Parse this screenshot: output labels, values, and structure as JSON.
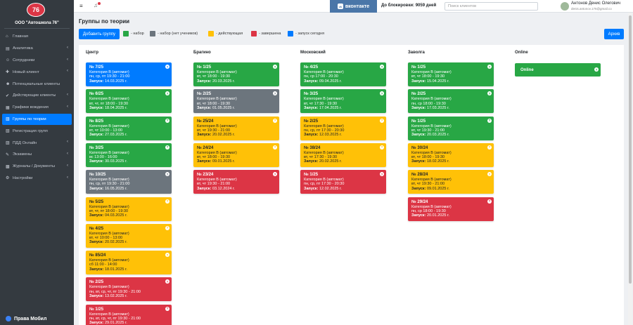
{
  "brand": {
    "logo": "76",
    "name": "ООО \"Автошкола 76\"",
    "bottom": "Права Мобил"
  },
  "colors": {
    "green": "#28a745",
    "gray": "#6c757d",
    "yellow": "#ffc107",
    "red": "#dc3545",
    "blue": "#007bff"
  },
  "nav": [
    {
      "label": "Главная",
      "icon": "home-icon",
      "glyph": "⌂",
      "chevron": false,
      "active": false
    },
    {
      "label": "Аналитика",
      "icon": "chart-icon",
      "glyph": "▤",
      "chevron": true,
      "active": false
    },
    {
      "label": "Сотрудники",
      "icon": "users-icon",
      "glyph": "☺",
      "chevron": true,
      "active": false
    },
    {
      "label": "Новый клиент",
      "icon": "user-plus-icon",
      "glyph": "✚",
      "chevron": true,
      "active": false
    },
    {
      "label": "Потенциальные клиенты",
      "icon": "user-icon",
      "glyph": "☻",
      "chevron": false,
      "active": false
    },
    {
      "label": "Действующие клиенты",
      "icon": "user-check-icon",
      "glyph": "✔",
      "chevron": true,
      "active": false
    },
    {
      "label": "Графики вождения",
      "icon": "calendar-icon",
      "glyph": "▦",
      "chevron": true,
      "active": false
    },
    {
      "label": "Группы по теории",
      "icon": "group-icon",
      "glyph": "▥",
      "chevron": false,
      "active": true
    },
    {
      "label": "Регистрация групп",
      "icon": "register-icon",
      "glyph": "▧",
      "chevron": false,
      "active": false
    },
    {
      "label": "ПДД Онлайн",
      "icon": "book-icon",
      "glyph": "▨",
      "chevron": true,
      "active": false
    },
    {
      "label": "Экзамены",
      "icon": "exam-icon",
      "glyph": "✎",
      "chevron": true,
      "active": false
    },
    {
      "label": "Журналы / Документы",
      "icon": "journal-icon",
      "glyph": "▩",
      "chevron": true,
      "active": false
    },
    {
      "label": "Настройки",
      "icon": "gear-icon",
      "glyph": "⚙",
      "chevron": true,
      "active": false
    }
  ],
  "topbar": {
    "vk_label": "вконтакте",
    "vk_badge": "vk",
    "block_label": "До блокировки: 9059 дней",
    "search_placeholder": "Поиск клиентов",
    "user_name": "Антонов Денис Олегович",
    "user_email": "denis.antonov.176@gmail.co"
  },
  "page": {
    "title": "Группы по теории",
    "add_button": "Добавить группу",
    "archive_button": "Архив"
  },
  "legend": [
    {
      "color": "#28a745",
      "label": "- набор"
    },
    {
      "color": "#6c757d",
      "label": "- набор (нет учеников)"
    },
    {
      "color": "#ffc107",
      "label": "- действующая"
    },
    {
      "color": "#dc3545",
      "label": "- завершена"
    },
    {
      "color": "#007bff",
      "label": "- запуск сегодня"
    }
  ],
  "launch_label": "Запуск:",
  "columns": [
    {
      "title": "Центр",
      "groups": [
        {
          "name": "№ 7/25",
          "category": "Категория В (автомат)",
          "schedule": "пн, ср, пт 19:30 - 21:00",
          "launch": "14.03.2025 г.",
          "color": "#007bff"
        },
        {
          "name": "№ 6/25",
          "category": "Категория В (автомат)",
          "schedule": "вт, чт, пт 18:00 - 19:30",
          "launch": "18.04.2025 г.",
          "color": "#28a745"
        },
        {
          "name": "№ 8/25",
          "category": "Категория В (автомат)",
          "schedule": "вт, чт 10:00 - 13:00",
          "launch": "27.03.2025 г.",
          "color": "#28a745"
        },
        {
          "name": "№ 3/25",
          "category": "Категория В (автомат)",
          "schedule": "вс 13:00 - 16:00",
          "launch": "30.03.2025 г.",
          "color": "#28a745"
        },
        {
          "name": "№ 10/25",
          "category": "Категория В (автомат)",
          "schedule": "пн, ср, пт 19:30 - 21:00",
          "launch": "16.05.2025 г.",
          "color": "#6c757d"
        },
        {
          "name": "№ 5/25",
          "category": "Категория В (автомат)",
          "schedule": "вт, чт, пт 18:00 - 19:30",
          "launch": "04.03.2025 г.",
          "color": "#ffc107"
        },
        {
          "name": "№ 4/25",
          "category": "Категория В (автомат)",
          "schedule": "вт, чт 10:00 - 13:00",
          "launch": "20.02.2025 г.",
          "color": "#ffc107"
        },
        {
          "name": "№ 85/24",
          "category": "Категория В (автомат)",
          "schedule": "сб 11:00 - 14:00",
          "launch": "18.01.2025 г.",
          "color": "#ffc107"
        },
        {
          "name": "№ 2/25",
          "category": "Категория В (автомат)",
          "schedule": "пн, вт, ср, чт, пт 19:30 - 21:00",
          "launch": "13.02.2025 г.",
          "color": "#dc3545"
        },
        {
          "name": "№ 1/25",
          "category": "Категория В (автомат)",
          "schedule": "пн, вт, ср, чт, пт 19:30 - 21:00",
          "launch": "29.01.2025 г.",
          "color": "#dc3545"
        }
      ]
    },
    {
      "title": "Брагино",
      "groups": [
        {
          "name": "№ 1/25",
          "category": "Категория В (автомат)",
          "schedule": "вт, чт 18:00 - 19:30",
          "launch": "20.03.2025 г.",
          "color": "#28a745"
        },
        {
          "name": "№ 2/25",
          "category": "Категория В (автомат)",
          "schedule": "вт, чт 18:00 - 19:30",
          "launch": "01.05.2025 г.",
          "color": "#6c757d"
        },
        {
          "name": "№ 25/24",
          "category": "Категория В (автомат)",
          "schedule": "вт, чт 19:30 - 21:00",
          "launch": "20.02.2025 г.",
          "color": "#ffc107"
        },
        {
          "name": "№ 24/24",
          "category": "Категория В (автомат)",
          "schedule": "вт, чт 18:00 - 19:30",
          "launch": "09.01.2025 г.",
          "color": "#ffc107"
        },
        {
          "name": "№ 23/24",
          "category": "Категория В (автомат)",
          "schedule": "вт, чт 19:30 - 21:00",
          "launch": "03.12.2024 г.",
          "color": "#dc3545"
        }
      ]
    },
    {
      "title": "Московский",
      "groups": [
        {
          "name": "№ 4/25",
          "category": "Категория В (автомат)",
          "schedule": "пн, ср 17:00 - 20:30",
          "launch": "09.04.2025 г.",
          "color": "#28a745"
        },
        {
          "name": "№ 3/25",
          "category": "Категория В (автомат)",
          "schedule": "вт, чт 17:30 - 19:30",
          "launch": "17.04.2025 г.",
          "color": "#28a745"
        },
        {
          "name": "№ 2/25",
          "category": "Категория В (автомат)",
          "schedule": "пн, ср, пт 17:30 - 20:30",
          "launch": "12.03.2025 г.",
          "color": "#ffc107"
        },
        {
          "name": "№ 38/24",
          "category": "Категория В (автомат)",
          "schedule": "вт, чт 17:30 - 19:30",
          "launch": "20.02.2025 г.",
          "color": "#ffc107"
        },
        {
          "name": "№ 1/25",
          "category": "Категория В (автомат)",
          "schedule": "пн, ср, пт 17:30 - 20:30",
          "launch": "12.02.2025 г.",
          "color": "#dc3545"
        }
      ]
    },
    {
      "title": "Заволга",
      "groups": [
        {
          "name": "№ 1/25",
          "category": "Категория В (автомат)",
          "schedule": "вт, чт 18:00 - 19:30",
          "launch": "15.04.2025 г.",
          "color": "#28a745"
        },
        {
          "name": "№ 2/25",
          "category": "Категория В (автомат)",
          "schedule": "пн, ср 18:00 - 19:30",
          "launch": "17.03.2025 г.",
          "color": "#28a745"
        },
        {
          "name": "№ 1/25",
          "category": "Категория В (автомат)",
          "schedule": "вт, чт 19:30 - 21:00",
          "launch": "20.03.2025 г.",
          "color": "#28a745"
        },
        {
          "name": "№ 30/24",
          "category": "Категория В (автомат)",
          "schedule": "вт, чт 18:00 - 19:30",
          "launch": "18.02.2025 г.",
          "color": "#ffc107"
        },
        {
          "name": "№ 28/24",
          "category": "Категория В (автомат)",
          "schedule": "вт, чт 19:30 - 21:00",
          "launch": "09.01.2025 г.",
          "color": "#ffc107"
        },
        {
          "name": "№ 29/24",
          "category": "Категория В (автомат)",
          "schedule": "пн, ср 18:00 - 19:30",
          "launch": "20.01.2025 г.",
          "color": "#dc3545"
        }
      ]
    },
    {
      "title": "Online",
      "online_label": "Online",
      "groups": []
    }
  ]
}
